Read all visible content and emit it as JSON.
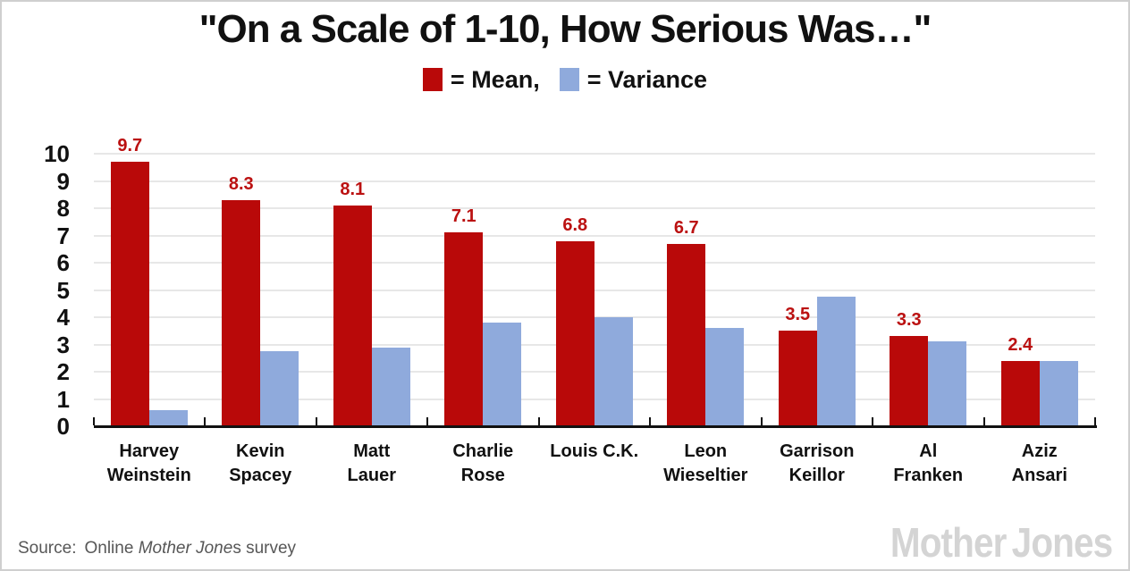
{
  "header": {
    "title": "\"On a Scale of 1-10, How Serious Was…\"",
    "legend": {
      "mean_label": "= Mean,",
      "variance_label": "= Variance"
    }
  },
  "colors": {
    "mean": "#b90909",
    "variance": "#8faadc",
    "value_label": "#bb1111",
    "gridline": "#e7e7e7",
    "axis": "#111111",
    "logo_gray": "#d4d4d4"
  },
  "chart_data": {
    "type": "bar",
    "title": "\"On a Scale of 1-10, How Serious Was…\"",
    "categories": [
      "Harvey Weinstein",
      "Kevin Spacey",
      "Matt Lauer",
      "Charlie Rose",
      "Louis C.K.",
      "Leon Wieseltier",
      "Garrison Keillor",
      "Al Franken",
      "Aziz Ansari"
    ],
    "category_label_lines": [
      [
        "Harvey",
        "Weinstein"
      ],
      [
        "Kevin",
        "Spacey"
      ],
      [
        "Matt",
        "Lauer"
      ],
      [
        "Charlie",
        "Rose"
      ],
      [
        "Louis C.K."
      ],
      [
        "Leon",
        "Wieseltier"
      ],
      [
        "Garrison",
        "Keillor"
      ],
      [
        "Al",
        "Franken"
      ],
      [
        "Aziz",
        "Ansari"
      ]
    ],
    "series": [
      {
        "name": "Mean",
        "color": "#b90909",
        "values": [
          9.7,
          8.3,
          8.1,
          7.1,
          6.8,
          6.7,
          3.5,
          3.3,
          2.4
        ],
        "data_labels": [
          "9.7",
          "8.3",
          "8.1",
          "7.1",
          "6.8",
          "6.7",
          "3.5",
          "3.3",
          "2.4"
        ]
      },
      {
        "name": "Variance",
        "color": "#8faadc",
        "values": [
          0.6,
          2.75,
          2.9,
          3.8,
          4.0,
          3.6,
          4.75,
          3.1,
          2.4
        ],
        "data_labels": null
      }
    ],
    "xlabel": "",
    "ylabel": "",
    "ylim": [
      0,
      10
    ],
    "y_ticks": [
      0,
      1,
      2,
      3,
      4,
      5,
      6,
      7,
      8,
      9,
      10
    ],
    "grid": "horizontal",
    "legend_position": "top"
  },
  "footer": {
    "source_prefix": "Source:",
    "source_normal1": "Online ",
    "source_italic": "Mother Jone",
    "source_normal2": "s survey",
    "logo_part1": "Mother",
    "logo_part2": "Jones"
  }
}
